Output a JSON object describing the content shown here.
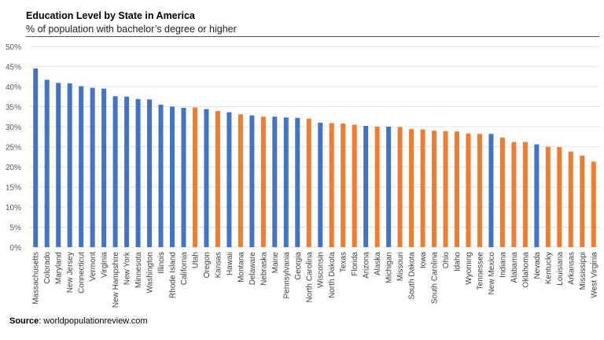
{
  "chart_data": {
    "type": "bar",
    "title": "Education  Level by State in America",
    "subtitle": "% of population with bachelor’s degree or higher",
    "source_label": "Source",
    "source_text": ": worldpopulationreview.com",
    "ylim": [
      0,
      50
    ],
    "yticks": [
      0,
      5,
      10,
      15,
      20,
      25,
      30,
      35,
      40,
      45,
      50
    ],
    "ytick_format": "%",
    "grid": true,
    "colors": {
      "blue": "#4472C4",
      "orange": "#ED7D31"
    },
    "categories": [
      "Massachusetts",
      "Colorado",
      "Maryland",
      "New Jersey",
      "Connecticut",
      "Vermont",
      "Virginia",
      "New Hampshire",
      "New York",
      "Minnesota",
      "Washington",
      "Illinois",
      "Rhode Island",
      "California",
      "Utah",
      "Oregon",
      "Kansas",
      "Hawaii",
      "Montana",
      "Delaware",
      "Nebraska",
      "Maine",
      "Pennsylvania",
      "Georgia",
      "North Carolina",
      "Wisconsin",
      "North Dakota",
      "Texas",
      "Florida",
      "Arizona",
      "Alaska",
      "Michigan",
      "Missouri",
      "South Dakota",
      "Iowa",
      "South Carolina",
      "Ohio",
      "Idaho",
      "Wyoming",
      "Tennessee",
      "New Mexico",
      "Indiana",
      "Alabama",
      "Oklahoma",
      "Nevada",
      "Kentucky",
      "Louisiana",
      "Arkansas",
      "Mississippi",
      "West Virginia"
    ],
    "values": [
      44.5,
      41.7,
      40.9,
      40.8,
      40.1,
      39.7,
      39.5,
      37.6,
      37.5,
      36.9,
      36.8,
      35.5,
      35.0,
      34.7,
      34.8,
      34.4,
      33.9,
      33.6,
      33.1,
      32.8,
      32.5,
      32.5,
      32.3,
      32.2,
      32.0,
      31.0,
      30.9,
      30.8,
      30.5,
      30.2,
      30.0,
      30.0,
      29.9,
      29.4,
      29.3,
      29.0,
      28.9,
      28.8,
      28.3,
      28.2,
      28.2,
      27.3,
      26.2,
      26.2,
      25.6,
      25.0,
      24.9,
      23.8,
      22.8,
      21.3
    ],
    "bar_colors": [
      "blue",
      "blue",
      "blue",
      "blue",
      "blue",
      "blue",
      "blue",
      "blue",
      "blue",
      "blue",
      "blue",
      "blue",
      "blue",
      "blue",
      "orange",
      "blue",
      "orange",
      "blue",
      "orange",
      "blue",
      "orange",
      "blue",
      "blue",
      "blue",
      "orange",
      "blue",
      "orange",
      "orange",
      "orange",
      "blue",
      "orange",
      "blue",
      "orange",
      "orange",
      "orange",
      "orange",
      "orange",
      "orange",
      "orange",
      "orange",
      "blue",
      "orange",
      "orange",
      "orange",
      "blue",
      "orange",
      "orange",
      "orange",
      "orange",
      "orange"
    ]
  }
}
